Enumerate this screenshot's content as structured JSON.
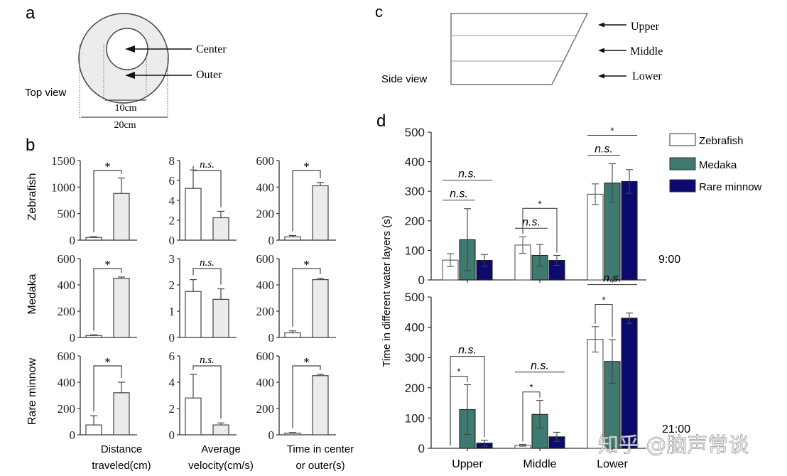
{
  "panel_labels": {
    "a": "a",
    "b": "b",
    "c": "c",
    "d": "d"
  },
  "panel_a": {
    "view_label": "Top view",
    "center_label": "Center",
    "outer_label": "Outer",
    "inner_diameter": "10cm",
    "outer_diameter": "20cm"
  },
  "panel_c": {
    "view_label": "Side view",
    "layers": [
      "Upper",
      "Middle",
      "Lower"
    ]
  },
  "watermark": "知乎 @脑声常谈",
  "colors": {
    "zebrafish": "#ffffff",
    "medaka": "#3f7a70",
    "rare_minnow": "#0c0a6e",
    "grey_bar": "#ebebeb",
    "axis": "#333333"
  },
  "chart_data": [
    {
      "type": "bar",
      "panel": "b",
      "description": "Open-field behaviour per species (center vs outer)",
      "rows": [
        "Zebrafish",
        "Medaka",
        "Rare minnow"
      ],
      "columns": [
        {
          "xlabel_line1": "Distance",
          "xlabel_line2": "traveled(cm)"
        },
        {
          "xlabel_line1": "Average",
          "xlabel_line2": "velocity(cm/s)"
        },
        {
          "xlabel_line1": "Time in center",
          "xlabel_line2": "or outer(s)"
        }
      ],
      "categories": [
        "Center",
        "Outer"
      ],
      "subplots": [
        {
          "row": "Zebrafish",
          "column": 0,
          "ylim": [
            0,
            1500
          ],
          "ticks": [
            0,
            500,
            1000,
            1500
          ],
          "values": [
            50,
            880
          ],
          "errors": [
            15,
            290
          ],
          "significance": "*"
        },
        {
          "row": "Zebrafish",
          "column": 1,
          "ylim": [
            0,
            8
          ],
          "ticks": [
            0,
            2,
            4,
            6,
            8
          ],
          "values": [
            5.2,
            2.25
          ],
          "errors": [
            1.85,
            0.65
          ],
          "significance": "n.s."
        },
        {
          "row": "Zebrafish",
          "column": 2,
          "ylim": [
            0,
            600
          ],
          "ticks": [
            0,
            200,
            400,
            600
          ],
          "values": [
            25,
            410
          ],
          "errors": [
            10,
            25
          ],
          "significance": "*"
        },
        {
          "row": "Medaka",
          "column": 0,
          "ylim": [
            0,
            600
          ],
          "ticks": [
            0,
            200,
            400,
            600
          ],
          "values": [
            15,
            450
          ],
          "errors": [
            5,
            10
          ],
          "significance": "*"
        },
        {
          "row": "Medaka",
          "column": 1,
          "ylim": [
            0,
            3
          ],
          "ticks": [
            0,
            1,
            2,
            3
          ],
          "values": [
            1.75,
            1.45
          ],
          "errors": [
            0.45,
            0.4
          ],
          "significance": "n.s."
        },
        {
          "row": "Medaka",
          "column": 2,
          "ylim": [
            0,
            600
          ],
          "ticks": [
            0,
            200,
            400,
            600
          ],
          "values": [
            35,
            440
          ],
          "errors": [
            15,
            10
          ],
          "significance": "*"
        },
        {
          "row": "Rare minnow",
          "column": 0,
          "ylim": [
            0,
            600
          ],
          "ticks": [
            0,
            200,
            400,
            600
          ],
          "values": [
            75,
            320
          ],
          "errors": [
            70,
            80
          ],
          "significance": "*"
        },
        {
          "row": "Rare minnow",
          "column": 1,
          "ylim": [
            0,
            6
          ],
          "ticks": [
            0,
            2,
            4,
            6
          ],
          "values": [
            2.8,
            0.75
          ],
          "errors": [
            1.8,
            0.15
          ],
          "significance": "n.s."
        },
        {
          "row": "Rare minnow",
          "column": 2,
          "ylim": [
            0,
            600
          ],
          "ticks": [
            0,
            200,
            400,
            600
          ],
          "values": [
            12,
            450
          ],
          "errors": [
            5,
            10
          ],
          "significance": "*"
        }
      ]
    },
    {
      "type": "bar",
      "panel": "d",
      "ylabel": "Time in different water layers (s)",
      "categories": [
        "Upper",
        "Middle",
        "Lower"
      ],
      "legend": [
        "Zebrafish",
        "Medaka",
        "Rare minnow"
      ],
      "legend_position": "top-right",
      "ylim": [
        0,
        500
      ],
      "ticks": [
        0,
        100,
        200,
        300,
        400,
        500
      ],
      "subplots": [
        {
          "time": "9:00",
          "series": [
            {
              "name": "Zebrafish",
              "values": [
                67,
                118,
                290
              ],
              "errors": [
                22,
                28,
                35
              ]
            },
            {
              "name": "Medaka",
              "values": [
                136,
                83,
                328
              ],
              "errors": [
                105,
                37,
                65
              ]
            },
            {
              "name": "Rare minnow",
              "values": [
                66,
                66,
                333
              ],
              "errors": [
                20,
                17,
                40
              ]
            }
          ],
          "annotations": [
            {
              "group": "Upper",
              "label": "n.s.",
              "style": "line",
              "span": [
                0,
                1
              ],
              "level": 1
            },
            {
              "group": "Upper",
              "label": "n.s.",
              "style": "line",
              "span": [
                0,
                2
              ],
              "level": 2
            },
            {
              "group": "Middle",
              "label": "n.s.",
              "style": "line",
              "span": [
                0,
                1
              ],
              "level": 1
            },
            {
              "group": "Middle",
              "label": "*",
              "style": "bracket",
              "span": [
                0,
                2
              ],
              "level": 2
            },
            {
              "group": "Lower",
              "label": "n.s.",
              "style": "line",
              "span": [
                0,
                1
              ],
              "level": 1
            },
            {
              "group": "Lower",
              "label": "*",
              "style": "line",
              "span": [
                0,
                2
              ],
              "level": 2
            }
          ]
        },
        {
          "time": "21:00",
          "series": [
            {
              "name": "Zebrafish",
              "values": [
                0,
                10,
                360
              ],
              "errors": [
                0,
                3,
                42
              ]
            },
            {
              "name": "Medaka",
              "values": [
                128,
                112,
                287
              ],
              "errors": [
                82,
                46,
                72
              ]
            },
            {
              "name": "Rare minnow",
              "values": [
                17,
                38,
                430
              ],
              "errors": [
                10,
                15,
                17
              ]
            }
          ],
          "annotations": [
            {
              "group": "Upper",
              "label": "*",
              "style": "bracket",
              "span": [
                0,
                1
              ],
              "level": 1
            },
            {
              "group": "Upper",
              "label": "n.s.",
              "style": "bracket",
              "span": [
                0,
                2
              ],
              "level": 2
            },
            {
              "group": "Middle",
              "label": "*",
              "style": "bracket",
              "span": [
                0,
                1
              ],
              "level": 1
            },
            {
              "group": "Middle",
              "label": "n.s.",
              "style": "line",
              "span": [
                0,
                2
              ],
              "level": 2
            },
            {
              "group": "Lower",
              "label": "*",
              "style": "bracket",
              "span": [
                0,
                1
              ],
              "level": 1
            },
            {
              "group": "Lower",
              "label": "n.s.",
              "style": "line",
              "span": [
                0,
                2
              ],
              "level": 2
            }
          ]
        }
      ]
    }
  ]
}
